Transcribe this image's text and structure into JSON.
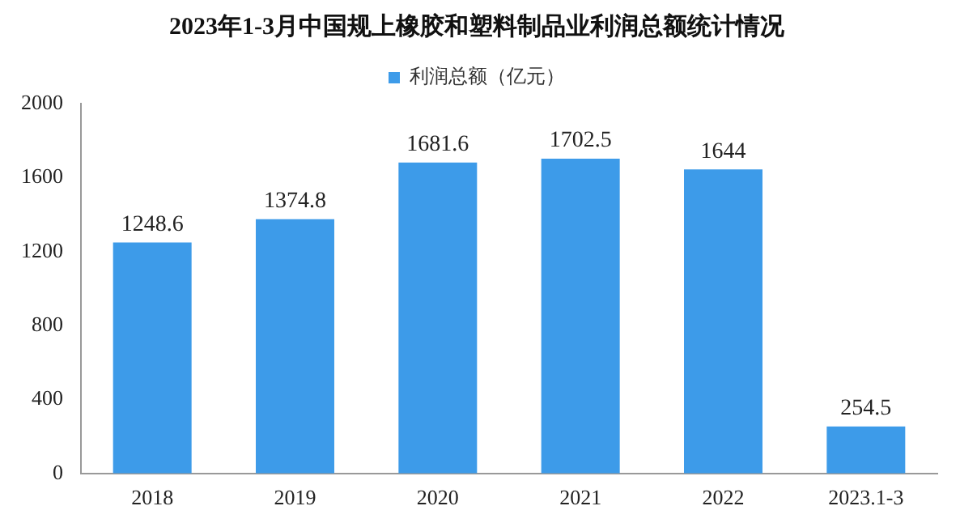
{
  "chart_data": {
    "type": "bar",
    "title": "2023年1-3月中国规上橡胶和塑料制品业利润总额统计情况",
    "categories": [
      "2018",
      "2019",
      "2020",
      "2021",
      "2022",
      "2023.1-3"
    ],
    "series": [
      {
        "name": "利润总额（亿元）",
        "color": "#3d9be9",
        "values": [
          1248.6,
          1374.8,
          1681.6,
          1702.5,
          1644,
          254.5
        ]
      }
    ],
    "ylim": [
      0,
      2000
    ],
    "yticks": [
      0,
      400,
      800,
      1200,
      1600,
      2000
    ],
    "grid": false,
    "legend": "top",
    "data_labels": true
  }
}
